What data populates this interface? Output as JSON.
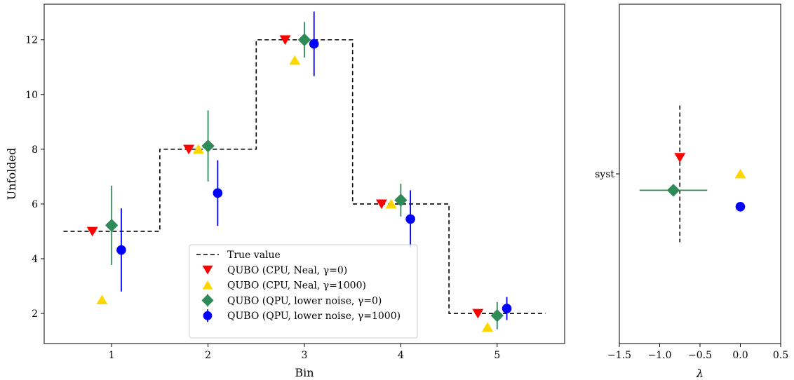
{
  "chart_data": [
    {
      "type": "step+errorbar",
      "xlabel": "Bin",
      "ylabel": "Unfolded",
      "xlim": [
        0.3,
        5.7
      ],
      "ylim": [
        0.9,
        13.3
      ],
      "x_ticks": [
        1,
        2,
        3,
        4,
        5
      ],
      "y_ticks": [
        2,
        4,
        6,
        8,
        10,
        12
      ],
      "legend_position": "lower-center",
      "true_value": {
        "name": "True value",
        "edges": [
          0.5,
          1.5,
          2.5,
          3.5,
          4.5,
          5.5
        ],
        "values": [
          5,
          8,
          12,
          6,
          2
        ],
        "color": "#000000",
        "style": "dashed"
      },
      "series": [
        {
          "name": "QUBO (CPU, Neal, γ=0)",
          "marker": "triangle-down",
          "color": "#ff0000",
          "points": [
            {
              "x": 0.8,
              "y": 5.0,
              "err": 0
            },
            {
              "x": 1.8,
              "y": 8.0,
              "err": 0
            },
            {
              "x": 2.8,
              "y": 12.0,
              "err": 0
            },
            {
              "x": 3.8,
              "y": 6.0,
              "err": 0
            },
            {
              "x": 4.8,
              "y": 2.0,
              "err": 0
            }
          ]
        },
        {
          "name": "QUBO (CPU, Neal, γ=1000)",
          "marker": "triangle-up",
          "color": "#ffd700",
          "points": [
            {
              "x": 0.9,
              "y": 2.5,
              "err": 0
            },
            {
              "x": 1.9,
              "y": 8.0,
              "err": 0
            },
            {
              "x": 2.9,
              "y": 11.25,
              "err": 0
            },
            {
              "x": 3.9,
              "y": 6.0,
              "err": 0
            },
            {
              "x": 4.9,
              "y": 1.5,
              "err": 0
            }
          ]
        },
        {
          "name": "QUBO (QPU, lower noise, γ=0)",
          "marker": "diamond",
          "color": "#2e8b57",
          "points": [
            {
              "x": 1.0,
              "y": 5.22,
              "err": 1.45
            },
            {
              "x": 2.0,
              "y": 8.12,
              "err": 1.3
            },
            {
              "x": 3.0,
              "y": 12.0,
              "err": 0.65
            },
            {
              "x": 4.0,
              "y": 6.14,
              "err": 0.6
            },
            {
              "x": 5.0,
              "y": 1.92,
              "err": 0.5
            }
          ]
        },
        {
          "name": "QUBO (QPU, lower noise, γ=1000)",
          "marker": "circle",
          "color": "#0000ff",
          "points": [
            {
              "x": 1.1,
              "y": 4.32,
              "err": 1.52
            },
            {
              "x": 2.1,
              "y": 6.4,
              "err": 1.2
            },
            {
              "x": 3.1,
              "y": 11.85,
              "err": 1.18
            },
            {
              "x": 4.1,
              "y": 5.45,
              "err": 1.05
            },
            {
              "x": 5.1,
              "y": 2.18,
              "err": 0.42
            }
          ]
        }
      ]
    },
    {
      "type": "scatter+errorbar",
      "xlabel": "λ",
      "xlim": [
        -1.5,
        0.5
      ],
      "x_ticks": [
        -1.5,
        -1.0,
        -0.5,
        0.0,
        0.5
      ],
      "x_tick_labels": [
        "−1.5",
        "−1.0",
        "−0.5",
        "0.0",
        "0.5"
      ],
      "categories": [
        "syst"
      ],
      "true_value": {
        "x": -0.75,
        "yerr": 0.5,
        "color": "#000000",
        "style": "dashed"
      },
      "series": [
        {
          "name": "QUBO (CPU, Neal, γ=0)",
          "marker": "triangle-down",
          "color": "#ff0000",
          "x": -0.75,
          "y_offset": 0.12,
          "xerr": 0
        },
        {
          "name": "QUBO (CPU, Neal, γ=1000)",
          "marker": "triangle-up",
          "color": "#ffd700",
          "x": 0.0,
          "y_offset": 0.0,
          "xerr": 0
        },
        {
          "name": "QUBO (QPU, lower noise, γ=0)",
          "marker": "diamond",
          "color": "#2e8b57",
          "x": -0.83,
          "y_offset": -0.12,
          "xerr": 0.42
        },
        {
          "name": "QUBO (QPU, lower noise, γ=1000)",
          "marker": "circle",
          "color": "#0000ff",
          "x": 0.0,
          "y_offset": -0.24,
          "xerr": 0
        }
      ]
    }
  ]
}
